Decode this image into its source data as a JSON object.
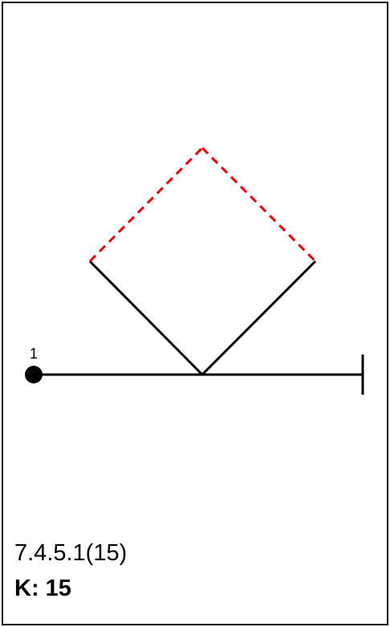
{
  "diagram": {
    "start_label": "1",
    "colors": {
      "solid": "#000000",
      "dashed": "#e8000b"
    }
  },
  "footer": {
    "code": "7.4.5.1(15)",
    "k_label": "K: 15"
  }
}
